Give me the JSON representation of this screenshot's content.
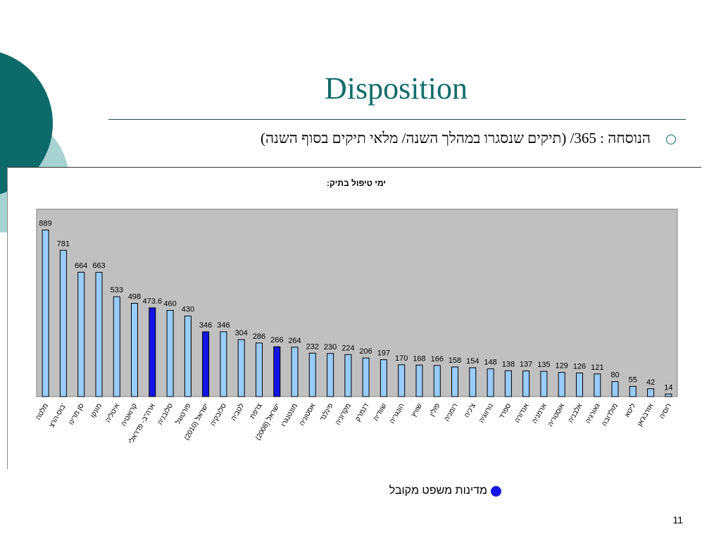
{
  "slide": {
    "title": "Disposition",
    "bullet": "הנוסחה : 365/ (תיקים שנסגרו במהלך השנה/ מלאי תיקים בסוף השנה)",
    "legend_label": "מדינות משפט מקובל",
    "page_number": "11"
  },
  "colors": {
    "teal_dark": "#0d6a6a",
    "teal_light": "#a9d3d3",
    "plot_bg": "#c0c0c0",
    "bar_regular": "#99ccff",
    "bar_highlight": "#1414e6"
  },
  "chart_data": {
    "type": "bar",
    "title": "ימי טיפול בתיק:",
    "xlabel": "",
    "ylabel": "",
    "ylim": [
      0,
      1000
    ],
    "grid": false,
    "categories": [
      "מלטה",
      "בוס-הרצ'",
      "סן מרינו",
      "מונקו",
      "איטליה",
      "קרואטיה",
      "ארה\"ב- פדראלי",
      "סלובניה",
      "פורטוגל",
      "ישראל (2010)",
      "סלובקיה",
      "לטביה",
      "צרפת",
      "ישראל (2008)",
      "מונטנגרו",
      "אסטוניה",
      "פינלנד",
      "מקדוניה",
      "דנמרק",
      "שוודיה",
      "הונגריה",
      "שוויץ",
      "פולין",
      "רומניה",
      "צ'כיה",
      "נורווגיה",
      "ספרד",
      "אנדורה",
      "ארמניה",
      "אוסטריה",
      "אלבניה",
      "גאורגיה",
      "מולדובה",
      "ליטא",
      "אזרבג'אן",
      "רוסיה"
    ],
    "values": [
      889,
      781,
      664,
      663,
      533,
      498,
      473.6,
      460,
      430,
      346,
      346,
      304,
      286,
      266,
      264,
      232,
      230,
      224,
      206,
      197,
      170,
      168,
      166,
      158,
      154,
      148,
      138,
      137,
      135,
      129,
      126,
      121,
      80,
      55,
      42,
      14
    ],
    "highlight": [
      false,
      false,
      false,
      false,
      false,
      false,
      true,
      false,
      false,
      true,
      false,
      false,
      false,
      true,
      false,
      false,
      false,
      false,
      false,
      false,
      false,
      false,
      false,
      false,
      false,
      false,
      false,
      false,
      false,
      false,
      false,
      false,
      false,
      false,
      false,
      false
    ],
    "legend": {
      "position": "bottom",
      "entries": [
        "מדינות משפט מקובל"
      ]
    }
  }
}
